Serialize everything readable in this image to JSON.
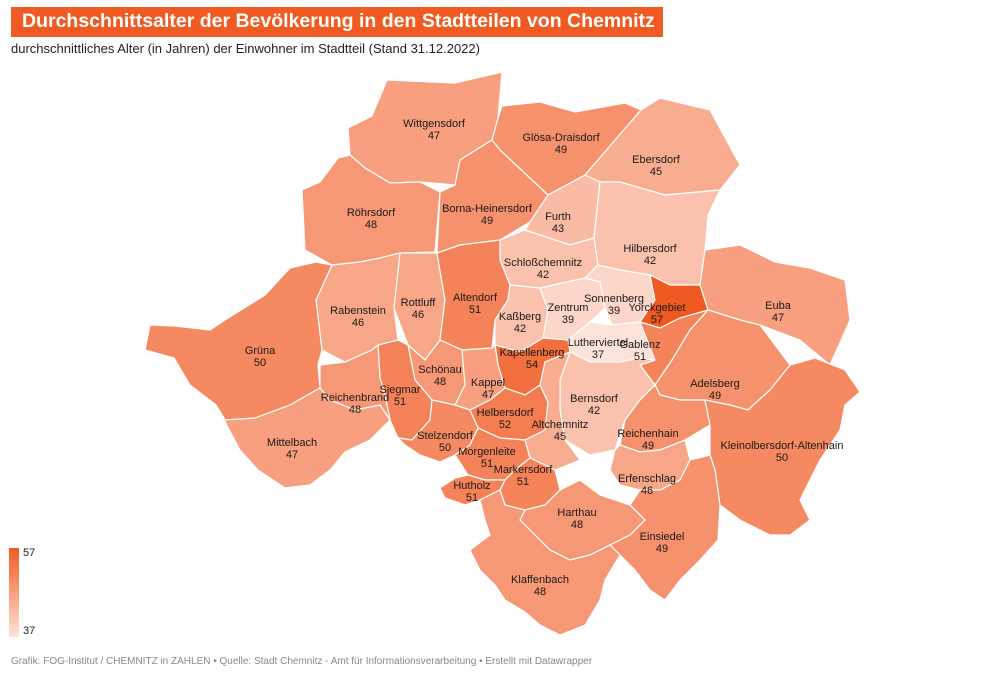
{
  "title": "Durchschnittsalter der Bevölkerung in den Stadtteilen von Chemnitz",
  "subtitle": "durchschnittliches Alter (in Jahren) der Einwohner im Stadtteil (Stand 31.12.2022)",
  "footer": "Grafik: FOG-Institut / CHEMNITZ in ZAHLEN • Quelle: Stadt Chemnitz - Amt für Informationsverarbeitung • Erstellt mit Datawrapper",
  "legend": {
    "max": "57",
    "min": "37"
  },
  "colors": {
    "low": "#fde4da",
    "high": "#f05a22"
  },
  "districts": [
    {
      "id": "wittgensdorf",
      "name": "Wittgensdorf",
      "value": 47
    },
    {
      "id": "gloesa-draisdorf",
      "name": "Glösa-Draisdorf",
      "value": 49
    },
    {
      "id": "ebersdorf",
      "name": "Ebersdorf",
      "value": 45
    },
    {
      "id": "roehrsdorf",
      "name": "Röhrsdorf",
      "value": 48
    },
    {
      "id": "borna-heinersdorf",
      "name": "Borna-Heinersdorf",
      "value": 49
    },
    {
      "id": "furth",
      "name": "Furth",
      "value": 43
    },
    {
      "id": "hilbersdorf",
      "name": "Hilbersdorf",
      "value": 42
    },
    {
      "id": "schlosschemnitz",
      "name": "Schloßchemnitz",
      "value": 42
    },
    {
      "id": "rabenstein",
      "name": "Rabenstein",
      "value": 46
    },
    {
      "id": "rottluff",
      "name": "Rottluff",
      "value": 46
    },
    {
      "id": "altendorf",
      "name": "Altendorf",
      "value": 51
    },
    {
      "id": "kassberg",
      "name": "Kaßberg",
      "value": 42
    },
    {
      "id": "zentrum",
      "name": "Zentrum",
      "value": 39
    },
    {
      "id": "sonnenberg",
      "name": "Sonnenberg",
      "value": 39
    },
    {
      "id": "yorckgebiet",
      "name": "Yorckgebiet",
      "value": 57
    },
    {
      "id": "euba",
      "name": "Euba",
      "value": 47
    },
    {
      "id": "gruena",
      "name": "Grüna",
      "value": 50
    },
    {
      "id": "lutherviertel",
      "name": "Lutherviertel",
      "value": 37
    },
    {
      "id": "gablenz",
      "name": "Gablenz",
      "value": 51
    },
    {
      "id": "kapellenberg",
      "name": "Kapellenberg",
      "value": 54
    },
    {
      "id": "schoenau",
      "name": "Schönau",
      "value": 48
    },
    {
      "id": "siegmar",
      "name": "Siegmar",
      "value": 51
    },
    {
      "id": "reichenbrand",
      "name": "Reichenbrand",
      "value": 48
    },
    {
      "id": "kappel",
      "name": "Kappel",
      "value": 47
    },
    {
      "id": "adelsberg",
      "name": "Adelsberg",
      "value": 49
    },
    {
      "id": "bernsdorf",
      "name": "Bernsdorf",
      "value": 42
    },
    {
      "id": "helbersdorf",
      "name": "Helbersdorf",
      "value": 52
    },
    {
      "id": "altchemnitz",
      "name": "Altchemnitz",
      "value": 45
    },
    {
      "id": "reichenhain",
      "name": "Reichenhain",
      "value": 49
    },
    {
      "id": "mittelbach",
      "name": "Mittelbach",
      "value": 47
    },
    {
      "id": "stelzendorf",
      "name": "Stelzendorf",
      "value": 50
    },
    {
      "id": "kleinolbersdorf-altenhain",
      "name": "Kleinolbersdorf-Altenhain",
      "value": 50
    },
    {
      "id": "morgenleite",
      "name": "Morgenleite",
      "value": 51
    },
    {
      "id": "markersdorf",
      "name": "Markersdorf",
      "value": 51
    },
    {
      "id": "erfenschlag",
      "name": "Erfenschlag",
      "value": 46
    },
    {
      "id": "hutholz",
      "name": "Hutholz",
      "value": 51
    },
    {
      "id": "harthau",
      "name": "Harthau",
      "value": 48
    },
    {
      "id": "einsiedel",
      "name": "Einsiedel",
      "value": 49
    },
    {
      "id": "kleinolbersdorf-altenhain",
      "name": "Kleinolbersdorf-Altenhain",
      "value": 50
    },
    {
      "id": "klaffenbach",
      "name": "Klaffenbach",
      "value": 48
    }
  ]
}
